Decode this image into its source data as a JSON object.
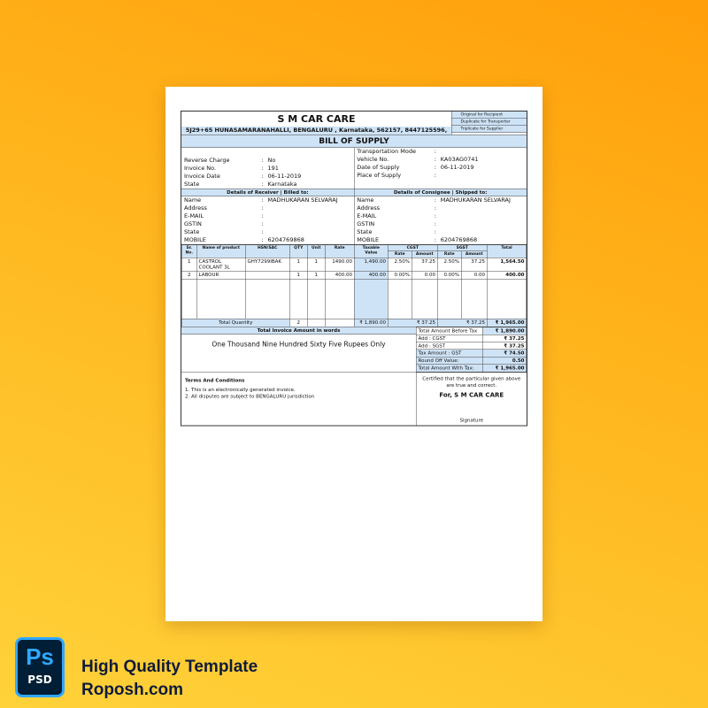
{
  "company": {
    "name": "S M CAR CARE",
    "address": "5J29+65 HUNASAMARANAHALLI, BENGALURU , Karnataka, 562157, 8447125596,",
    "copies": [
      "Original for Recipient",
      "Duplicate for Transporter",
      "Triplicate for Supplier"
    ]
  },
  "title": "BILL OF SUPPLY",
  "invoice_info": [
    {
      "k": "Reverse Charge",
      "v": "No"
    },
    {
      "k": "Invoice No.",
      "v": "191"
    },
    {
      "k": "Invoice Date",
      "v": "06-11-2019"
    },
    {
      "k": "State",
      "v": "Karnataka"
    }
  ],
  "transport_info": [
    {
      "k": "Transportation Mode",
      "v": ""
    },
    {
      "k": "Vehicle No.",
      "v": "KA03AG0741"
    },
    {
      "k": "Date of Supply",
      "v": "06-11-2019"
    },
    {
      "k": "Place of Supply",
      "v": ""
    }
  ],
  "receiver": {
    "title": "Details of Receiver | Billed to:",
    "fields": [
      {
        "k": "Name",
        "v": "MADHUKARAN SELVARAJ"
      },
      {
        "k": "Address",
        "v": ""
      },
      {
        "k": "E-MAIL",
        "v": ""
      },
      {
        "k": "GSTIN",
        "v": ""
      },
      {
        "k": "State",
        "v": ""
      },
      {
        "k": "MOBILE",
        "v": "6204769868"
      }
    ]
  },
  "consignee": {
    "title": "Details of Consignee | Shipped to:",
    "fields": [
      {
        "k": "Name",
        "v": "MADHUKARAN SELVARAJ"
      },
      {
        "k": "Address",
        "v": ""
      },
      {
        "k": "E-MAIL",
        "v": ""
      },
      {
        "k": "GSTIN",
        "v": ""
      },
      {
        "k": "State",
        "v": ""
      },
      {
        "k": "MOBILE",
        "v": "6204769868"
      }
    ]
  },
  "items": {
    "headers": {
      "sr": "Sr. No.",
      "name": "Name of product",
      "hsn": "HSN/SAC",
      "qty": "QTY",
      "unit": "Unit",
      "rate": "Rate",
      "taxable": "Taxable Value",
      "cgst": "CGST",
      "sgst": "SGST",
      "tax_rate": "Rate",
      "tax_amount": "Amount",
      "total": "Total"
    },
    "rows": [
      {
        "sr": "1",
        "name": "CASTROL COOLANT 3L",
        "hsn": "GHY7299IBAK",
        "qty": "1",
        "unit": "1",
        "rate": "1490.00",
        "taxable": "1,490.00",
        "cgst_rate": "2.50%",
        "cgst_amt": "37.25",
        "sgst_rate": "2.50%",
        "sgst_amt": "37.25",
        "total": "1,564.50"
      },
      {
        "sr": "2",
        "name": "LABOUR",
        "hsn": "",
        "qty": "1",
        "unit": "1",
        "rate": "400.00",
        "taxable": "400.00",
        "cgst_rate": "0.00%",
        "cgst_amt": "0.00",
        "sgst_rate": "0.00%",
        "sgst_amt": "0.00",
        "total": "400.00"
      }
    ],
    "totals": {
      "taxable": "₹ 1,890.00",
      "cgst": "₹ 37.25",
      "sgst": "₹ 37.25",
      "total": "₹ 1,965.00"
    },
    "total_quantity_label": "Total Quantity",
    "total_quantity": "2"
  },
  "summary": [
    {
      "k": "Total Amount Before Tax",
      "v": "₹ 1,890.00"
    },
    {
      "k": "Add : CGST",
      "v": "₹ 37.25"
    },
    {
      "k": "Add : SGST",
      "v": "₹ 37.25"
    },
    {
      "k": "Tax Amount : GST",
      "v": "₹ 74.50"
    },
    {
      "k": "Round Off Value:",
      "v": "0.50"
    },
    {
      "k": "Total Amount With Tax:",
      "v": "₹ 1,965.00"
    }
  ],
  "words": {
    "title": "Total Invoice Amount in words",
    "value": "One Thousand Nine Hundred Sixty Five Rupees Only"
  },
  "terms": {
    "title": "Terms And Conditions",
    "lines": [
      "1. This is an electronically generated invoice.",
      "2. All disputes are subject to BENGALURU jurisdiction"
    ]
  },
  "signature": {
    "certified": "Certified that the particular given above are true and correct.",
    "for": "For, S M CAR CARE",
    "label": "Signature"
  },
  "branding": {
    "badge_top": "Ps",
    "badge_bottom": "PSD",
    "line1": "High Quality Template",
    "line2": "Roposh.com"
  },
  "colors": {
    "background": "#ffb41c",
    "highlight": "#cfe3f6",
    "badge": "#001e36",
    "badge_accent": "#31a8ff"
  }
}
